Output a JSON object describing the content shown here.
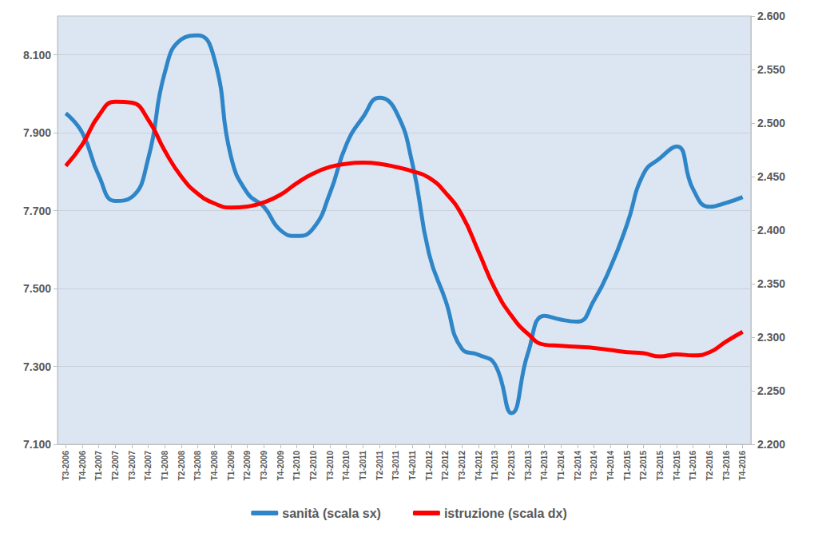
{
  "chart_data": {
    "type": "line",
    "categories": [
      "T3-2006",
      "T4-2006",
      "T1-2007",
      "T2-2007",
      "T3-2007",
      "T4-2007",
      "T1-2008",
      "T2-2008",
      "T3-2008",
      "T4-2008",
      "T1-2009",
      "T2-2009",
      "T3-2009",
      "T4-2009",
      "T1-2010",
      "T2-2010",
      "T3-2010",
      "T4-2010",
      "T1-2011",
      "T2-2011",
      "T3-2011",
      "T4-2011",
      "T1-2012",
      "T2-2012",
      "T3-2012",
      "T4-2012",
      "T1-2013",
      "T2-2013",
      "T3-2013",
      "T4-2013",
      "T1-2014",
      "T2-2014",
      "T3-2014",
      "T4-2014",
      "T1-2015",
      "T2-2015",
      "T3-2015",
      "T4-2015",
      "T1-2016",
      "T2-2016",
      "T3-2016",
      "T4-2016"
    ],
    "series": [
      {
        "name": "sanità (scala sx)",
        "color": "#2e86c8",
        "values": [
          7950,
          7900,
          7790,
          7725,
          7735,
          7835,
          8055,
          8140,
          8150,
          8090,
          7840,
          7745,
          7710,
          7650,
          7635,
          7655,
          7745,
          7870,
          7940,
          7990,
          7955,
          7820,
          7590,
          7470,
          7345,
          7330,
          7305,
          7180,
          7335,
          7430,
          7420,
          7415,
          7470,
          7555,
          7665,
          7795,
          7835,
          7865,
          7755,
          7710,
          7720,
          7735
        ]
      },
      {
        "name": "istruzione (scala dx)",
        "color": "#ff0000",
        "axis": "y2",
        "values": [
          2460,
          2480,
          2507,
          2520,
          2519,
          2503,
          2474,
          2450,
          2434,
          2425,
          2421,
          2422,
          2426,
          2433,
          2444,
          2453,
          2459,
          2462,
          2463,
          2462,
          2459,
          2455,
          2449,
          2435,
          2414,
          2380,
          2345,
          2320,
          2303,
          2293,
          2292,
          2291,
          2290,
          2288,
          2286,
          2285,
          2282,
          2284,
          2283,
          2286,
          2296,
          2305
        ]
      }
    ],
    "ylim": [
      7100,
      8200
    ],
    "yticks": [
      {
        "value": 7100,
        "label": "7.100"
      },
      {
        "value": 7300,
        "label": "7.300"
      },
      {
        "value": 7500,
        "label": "7.500"
      },
      {
        "value": 7700,
        "label": "7.700"
      },
      {
        "value": 7900,
        "label": "7.900"
      },
      {
        "value": 8100,
        "label": "8.100"
      }
    ],
    "y2lim": [
      2200,
      2600
    ],
    "y2ticks": [
      {
        "value": 2200,
        "label": "2.200"
      },
      {
        "value": 2250,
        "label": "2.250"
      },
      {
        "value": 2300,
        "label": "2.300"
      },
      {
        "value": 2350,
        "label": "2.350"
      },
      {
        "value": 2400,
        "label": "2.400"
      },
      {
        "value": 2450,
        "label": "2.450"
      },
      {
        "value": 2500,
        "label": "2.500"
      },
      {
        "value": 2550,
        "label": "2.550"
      },
      {
        "value": 2600,
        "label": "2.600"
      }
    ],
    "grid": true,
    "legend": "bottom"
  }
}
